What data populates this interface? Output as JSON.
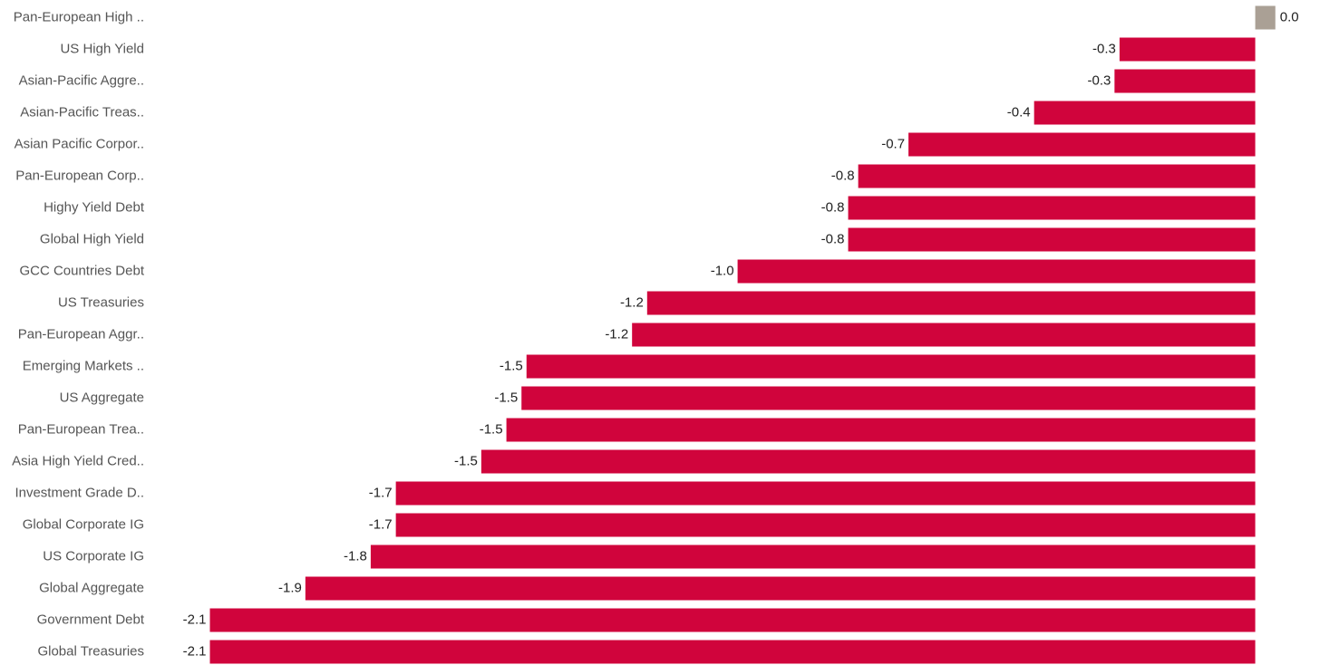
{
  "chart_data": {
    "type": "barh",
    "categories": [
      "Pan-European High ..",
      "US High Yield",
      "Asian-Pacific Aggre..",
      "Asian-Pacific Treas..",
      "Asian Pacific Corpor..",
      "Pan-European Corp..",
      "Highy Yield Debt",
      "Global High Yield",
      "GCC Countries Debt",
      "US Treasuries",
      "Pan-European Aggr..",
      "Emerging Markets ..",
      "US Aggregate",
      "Pan-European Trea..",
      "Asia High Yield Cred..",
      "Investment Grade D..",
      "Global Corporate IG",
      "US Corporate IG",
      "Global Aggregate",
      "Government Debt",
      "Global Treasuries"
    ],
    "values": [
      0.04,
      -0.27,
      -0.28,
      -0.44,
      -0.69,
      -0.79,
      -0.81,
      -0.81,
      -1.03,
      -1.21,
      -1.24,
      -1.45,
      -1.46,
      -1.49,
      -1.54,
      -1.71,
      -1.71,
      -1.76,
      -1.89,
      -2.08,
      -2.08
    ],
    "value_labels": [
      "0.0",
      "-0.3",
      "-0.3",
      "-0.4",
      "-0.7",
      "-0.8",
      "-0.8",
      "-0.8",
      "-1.0",
      "-1.2",
      "-1.2",
      "-1.5",
      "-1.5",
      "-1.5",
      "-1.5",
      "-1.7",
      "-1.7",
      "-1.8",
      "-1.9",
      "-2.1",
      "-2.1"
    ],
    "color": "#d0043c",
    "positive_color": "#aaa095",
    "xlim": [
      -2.2,
      0.1
    ]
  }
}
